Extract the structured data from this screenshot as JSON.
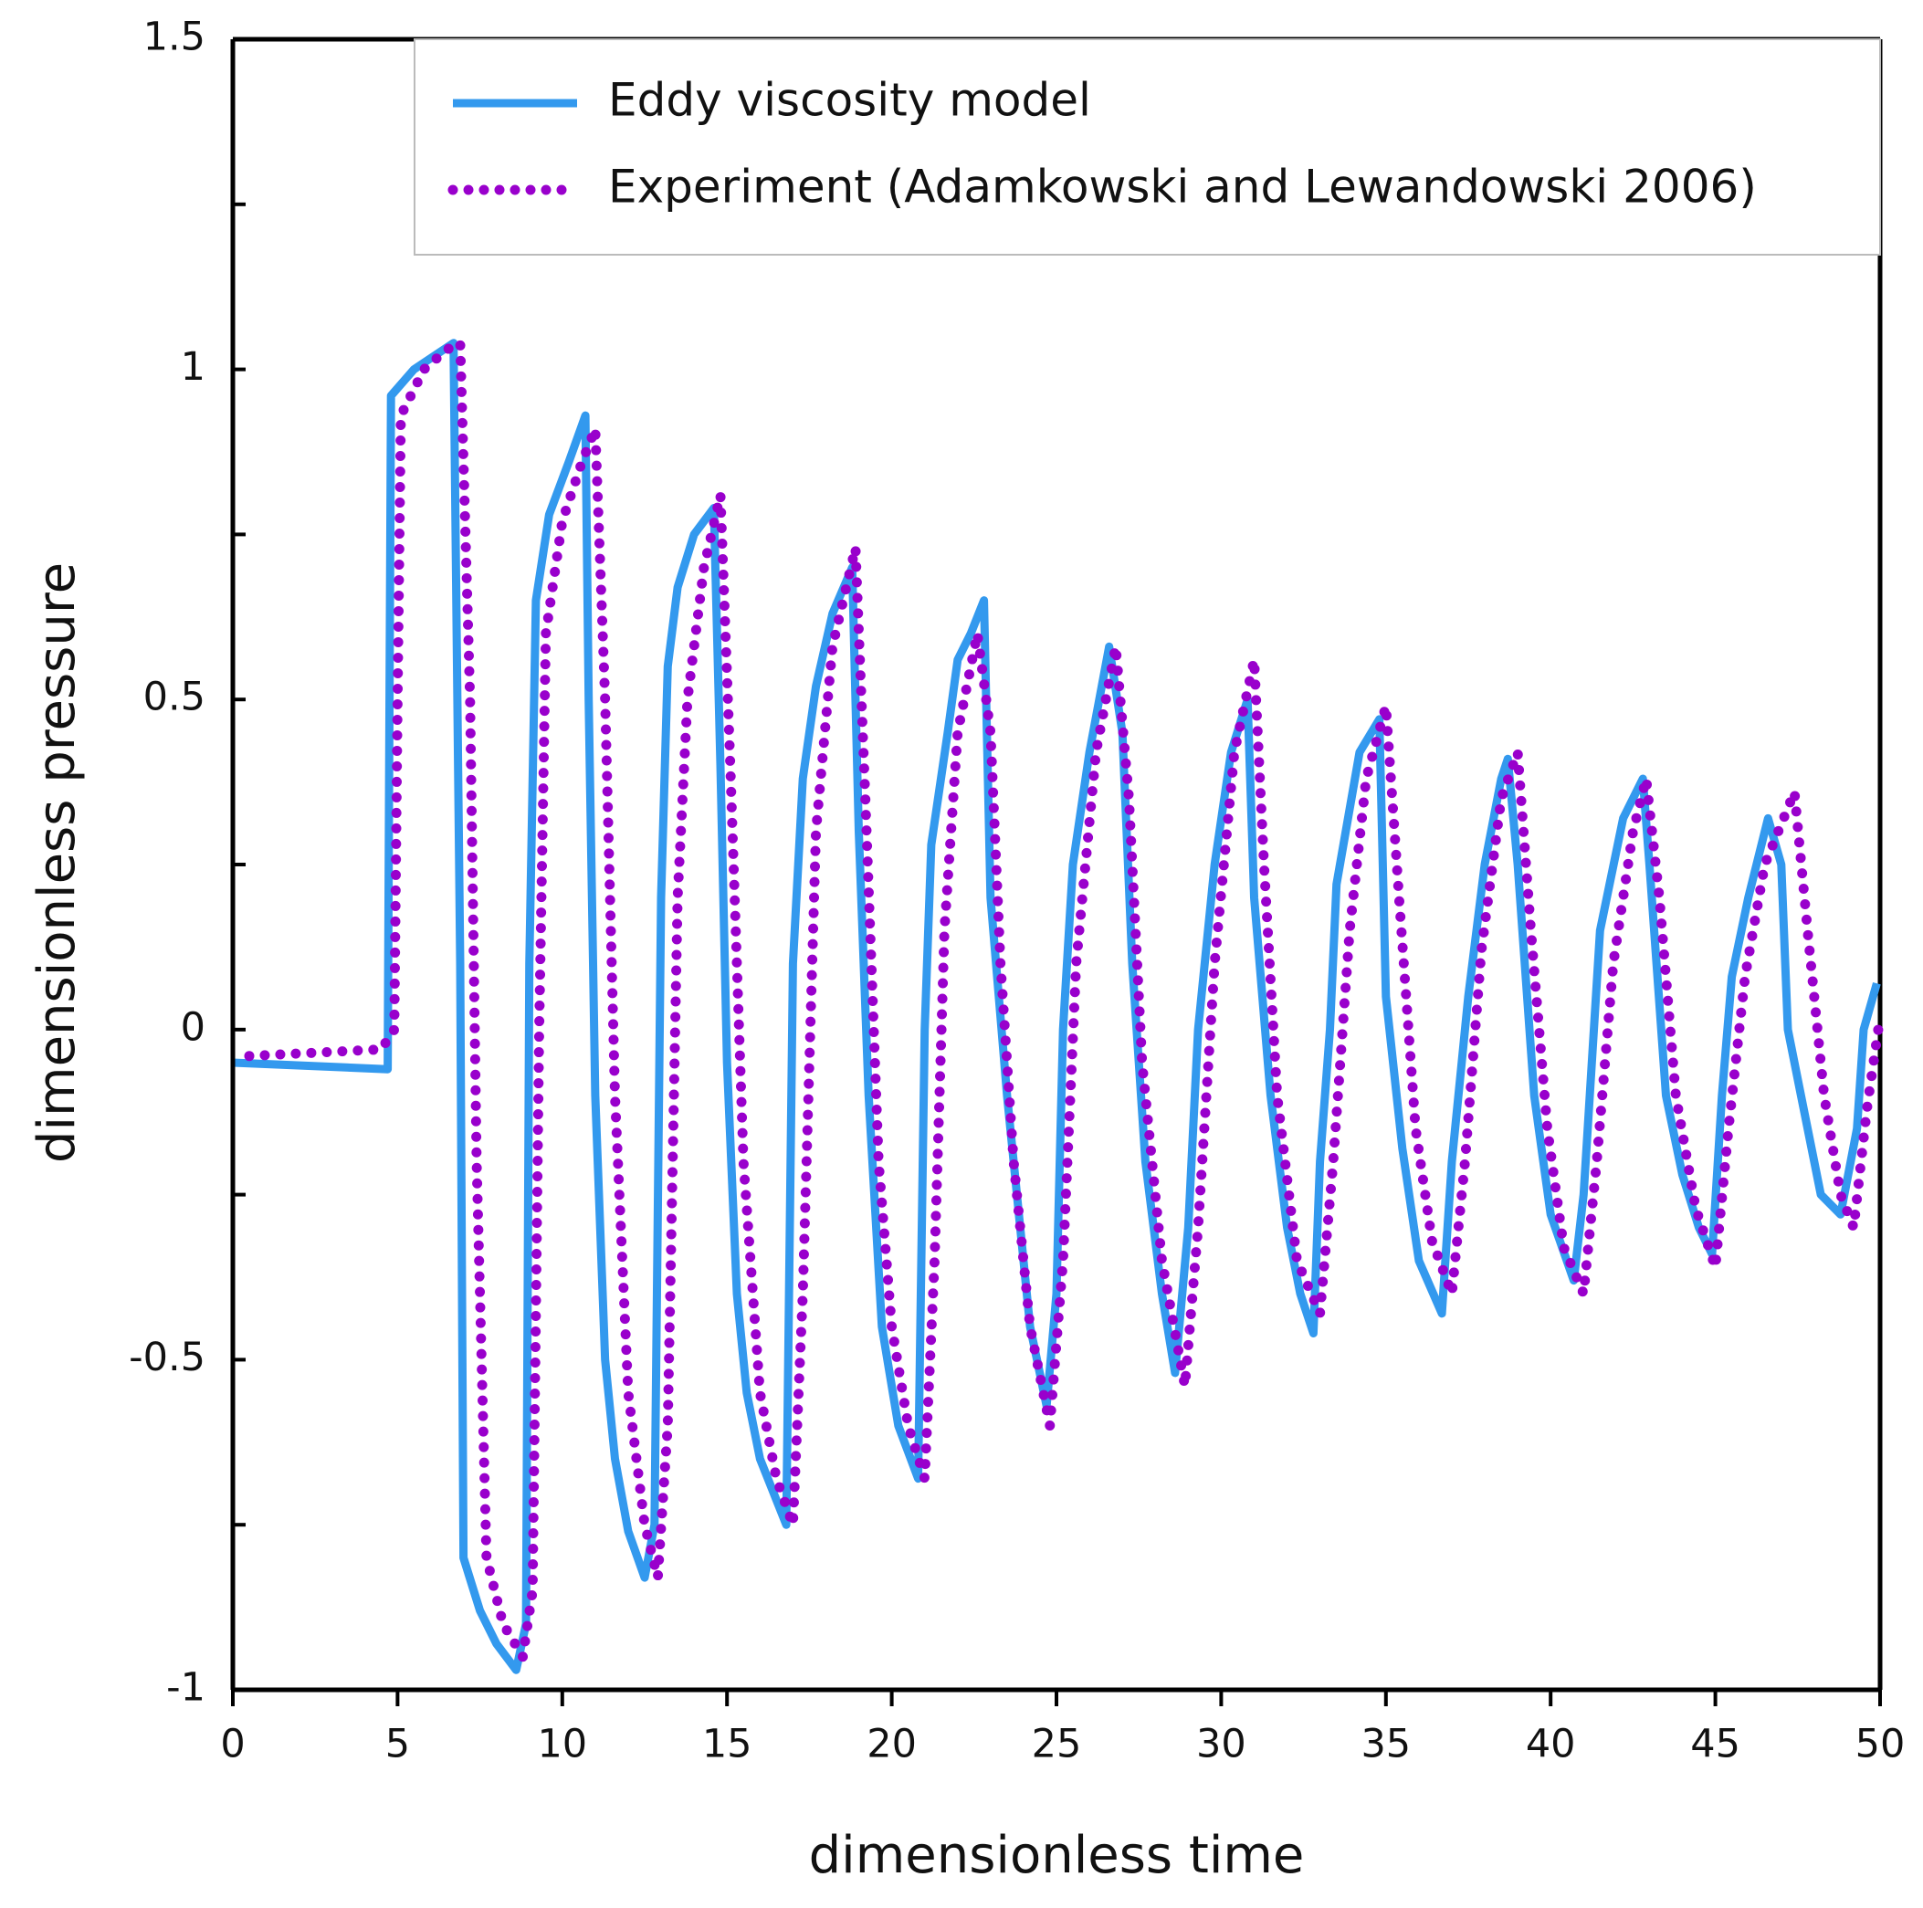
{
  "chart_data": {
    "type": "line",
    "xlabel": "dimensionless time",
    "ylabel": "dimensionless pressure",
    "xlim": [
      0,
      50
    ],
    "ylim": [
      -1,
      1.5
    ],
    "xticks": [
      0,
      5,
      10,
      15,
      20,
      25,
      30,
      35,
      40,
      45,
      50
    ],
    "yticks": [
      -1,
      -0.5,
      0,
      0.5,
      1,
      1.5
    ],
    "yminor_ticks": [
      -0.75,
      -0.25,
      0.25,
      0.75,
      1.25
    ],
    "legend": "upper right",
    "series": [
      {
        "name": "Eddy viscosity model",
        "color": "#3399ee",
        "style": "solid",
        "x": [
          0,
          4.7,
          4.8,
          5.5,
          6.7,
          6.9,
          7.0,
          7.5,
          8.0,
          8.6,
          8.9,
          9.0,
          9.2,
          9.6,
          10.2,
          10.7,
          10.8,
          11.0,
          11.3,
          11.6,
          12.0,
          12.5,
          12.8,
          13.0,
          13.2,
          13.5,
          14.0,
          14.6,
          14.8,
          15.0,
          15.3,
          15.6,
          16.0,
          16.8,
          17.0,
          17.3,
          17.7,
          18.2,
          18.8,
          19.0,
          19.3,
          19.7,
          20.2,
          20.8,
          21.0,
          21.2,
          21.7,
          22.0,
          22.4,
          22.8,
          23.0,
          23.5,
          23.8,
          24.2,
          24.7,
          25.0,
          25.2,
          25.5,
          26.0,
          26.6,
          27.0,
          27.3,
          27.7,
          28.2,
          28.6,
          29.0,
          29.3,
          29.8,
          30.3,
          30.8,
          31.0,
          31.5,
          32.0,
          32.4,
          32.8,
          33.0,
          33.3,
          33.5,
          34.2,
          34.8,
          35.0,
          35.5,
          36.0,
          36.7,
          37.0,
          37.5,
          38.0,
          38.5,
          38.7,
          39.0,
          39.5,
          40.0,
          40.7,
          41.0,
          41.5,
          42.2,
          42.8,
          43.0,
          43.5,
          44.0,
          44.5,
          44.9,
          45.2,
          45.5,
          46.0,
          46.6,
          47.0,
          47.2,
          47.6,
          48.2,
          48.8,
          49.3,
          49.5,
          49.9
        ],
        "values": [
          -0.05,
          -0.06,
          0.96,
          1.0,
          1.04,
          0.1,
          -0.8,
          -0.88,
          -0.93,
          -0.97,
          -0.9,
          0.1,
          0.65,
          0.78,
          0.86,
          0.93,
          0.5,
          -0.1,
          -0.5,
          -0.65,
          -0.76,
          -0.83,
          -0.75,
          0.2,
          0.55,
          0.67,
          0.75,
          0.79,
          0.4,
          -0.05,
          -0.4,
          -0.55,
          -0.65,
          -0.75,
          0.1,
          0.38,
          0.52,
          0.63,
          0.7,
          0.3,
          -0.1,
          -0.45,
          -0.6,
          -0.68,
          0.0,
          0.28,
          0.45,
          0.56,
          0.6,
          0.65,
          0.2,
          -0.1,
          -0.25,
          -0.45,
          -0.57,
          -0.4,
          0.0,
          0.25,
          0.42,
          0.58,
          0.45,
          0.1,
          -0.2,
          -0.4,
          -0.52,
          -0.3,
          0.0,
          0.25,
          0.42,
          0.5,
          0.2,
          -0.1,
          -0.3,
          -0.4,
          -0.46,
          -0.2,
          0.0,
          0.22,
          0.42,
          0.47,
          0.05,
          -0.18,
          -0.35,
          -0.43,
          -0.2,
          0.05,
          0.25,
          0.38,
          0.41,
          0.25,
          -0.1,
          -0.28,
          -0.38,
          -0.25,
          0.15,
          0.32,
          0.38,
          0.25,
          -0.1,
          -0.22,
          -0.3,
          -0.34,
          -0.1,
          0.08,
          0.2,
          0.32,
          0.25,
          0.0,
          -0.1,
          -0.25,
          -0.28,
          -0.15,
          0.0,
          0.07
        ]
      },
      {
        "name": "Experiment (Adamkowski and Lewandowski 2006)",
        "color": "#9900cc",
        "style": "dotted",
        "x": [
          0.5,
          4.5,
          4.9,
          5.0,
          5.1,
          5.8,
          6.5,
          6.9,
          7.2,
          7.4,
          7.7,
          8.2,
          8.8,
          9.1,
          9.3,
          9.5,
          10.0,
          10.6,
          11.0,
          11.3,
          11.6,
          12.0,
          12.5,
          12.9,
          13.2,
          13.5,
          13.8,
          14.3,
          14.8,
          15.1,
          15.5,
          16.0,
          16.5,
          17.0,
          17.3,
          17.7,
          18.2,
          18.9,
          19.2,
          19.6,
          20.0,
          20.5,
          21.0,
          21.3,
          21.6,
          22.0,
          22.6,
          23.0,
          23.3,
          23.7,
          24.2,
          24.8,
          25.2,
          25.6,
          26.2,
          26.8,
          27.2,
          27.6,
          28.2,
          28.9,
          29.3,
          29.8,
          30.4,
          31.0,
          31.3,
          31.7,
          32.3,
          33.0,
          33.4,
          33.9,
          34.4,
          35.0,
          35.4,
          35.9,
          36.4,
          37.0,
          37.4,
          37.9,
          38.5,
          39.0,
          39.4,
          39.9,
          40.4,
          41.0,
          41.4,
          41.9,
          42.5,
          42.9,
          43.3,
          43.8,
          44.4,
          45.0,
          45.4,
          45.9,
          46.5,
          47.4,
          47.8,
          48.3,
          48.8,
          49.2,
          49.6,
          50.0
        ],
        "values": [
          -0.04,
          -0.03,
          0.0,
          0.5,
          0.93,
          1.0,
          1.03,
          1.04,
          0.5,
          -0.2,
          -0.8,
          -0.9,
          -0.95,
          -0.85,
          0.0,
          0.6,
          0.77,
          0.86,
          0.91,
          0.5,
          -0.1,
          -0.55,
          -0.75,
          -0.83,
          -0.6,
          0.2,
          0.5,
          0.7,
          0.81,
          0.4,
          -0.2,
          -0.55,
          -0.68,
          -0.75,
          -0.4,
          0.3,
          0.58,
          0.73,
          0.35,
          -0.2,
          -0.45,
          -0.6,
          -0.68,
          -0.35,
          0.15,
          0.45,
          0.6,
          0.45,
          0.1,
          -0.2,
          -0.45,
          -0.6,
          -0.35,
          0.1,
          0.42,
          0.58,
          0.35,
          -0.05,
          -0.35,
          -0.54,
          -0.3,
          0.1,
          0.42,
          0.56,
          0.25,
          -0.1,
          -0.35,
          -0.43,
          -0.2,
          0.15,
          0.38,
          0.49,
          0.2,
          -0.15,
          -0.32,
          -0.4,
          -0.2,
          0.12,
          0.35,
          0.42,
          0.15,
          -0.15,
          -0.33,
          -0.4,
          -0.2,
          0.1,
          0.3,
          0.38,
          0.2,
          -0.1,
          -0.27,
          -0.36,
          -0.15,
          0.08,
          0.25,
          0.36,
          0.15,
          -0.1,
          -0.25,
          -0.3,
          -0.12,
          0.02
        ]
      }
    ]
  }
}
